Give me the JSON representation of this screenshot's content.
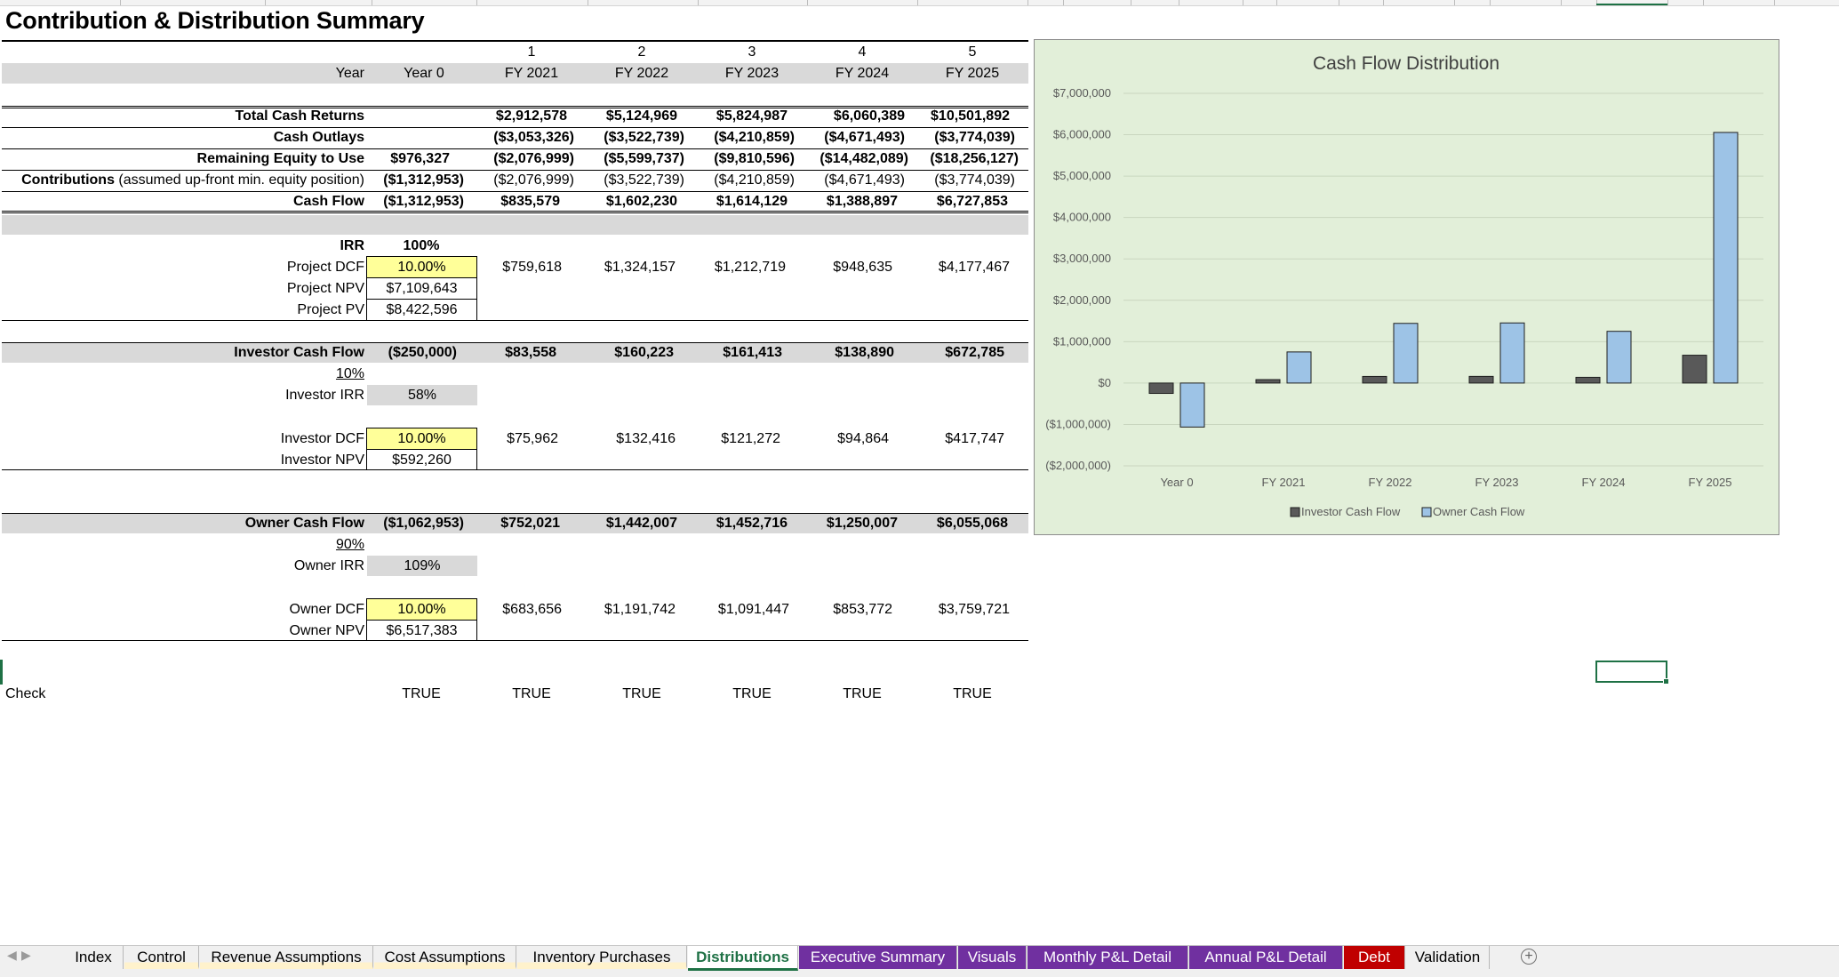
{
  "title": "Contribution & Distribution Summary",
  "header": {
    "year_label": "Year",
    "year0": "Year 0",
    "period_numbers": [
      "1",
      "2",
      "3",
      "4",
      "5"
    ],
    "fy_labels": [
      "FY 2021",
      "FY 2022",
      "FY 2023",
      "FY 2024",
      "FY 2025"
    ]
  },
  "summary": {
    "total_cash_returns": {
      "label": "Total Cash Returns",
      "y0": "",
      "values": [
        "$2,912,578",
        "$5,124,969",
        "$5,824,987",
        "$6,060,389",
        "$10,501,892"
      ]
    },
    "cash_outlays": {
      "label": "Cash Outlays",
      "y0": "",
      "values": [
        "($3,053,326)",
        "($3,522,739)",
        "($4,210,859)",
        "($4,671,493)",
        "($3,774,039)"
      ]
    },
    "remaining_equity": {
      "label": "Remaining Equity to Use",
      "y0": "$976,327",
      "values": [
        "($2,076,999)",
        "($5,599,737)",
        "($9,810,596)",
        "($14,482,089)",
        "($18,256,127)"
      ]
    },
    "contributions": {
      "label_bold": "Contributions",
      "label_note": "(assumed up-front min. equity position)",
      "y0": "($1,312,953)",
      "values": [
        "($2,076,999)",
        "($3,522,739)",
        "($4,210,859)",
        "($4,671,493)",
        "($3,774,039)"
      ]
    },
    "cash_flow": {
      "label": "Cash Flow",
      "y0": "($1,312,953)",
      "values": [
        "$835,579",
        "$1,602,230",
        "$1,614,129",
        "$1,388,897",
        "$6,727,853"
      ]
    }
  },
  "project": {
    "irr_label": "IRR",
    "irr": "100%",
    "dcf_label": "Project DCF",
    "dcf": "10.00%",
    "dcf_values": [
      "$759,618",
      "$1,324,157",
      "$1,212,719",
      "$948,635",
      "$4,177,467"
    ],
    "npv_label": "Project NPV",
    "npv": "$7,109,643",
    "pv_label": "Project PV",
    "pv": "$8,422,596"
  },
  "investor": {
    "cf_label": "Investor Cash Flow",
    "y0": "($250,000)",
    "values": [
      "$83,558",
      "$160,223",
      "$161,413",
      "$138,890",
      "$672,785"
    ],
    "share": "10%",
    "irr_label": "Investor IRR",
    "irr": "58%",
    "dcf_label": "Investor DCF",
    "dcf": "10.00%",
    "dcf_values": [
      "$75,962",
      "$132,416",
      "$121,272",
      "$94,864",
      "$417,747"
    ],
    "npv_label": "Investor NPV",
    "npv": "$592,260"
  },
  "owner": {
    "cf_label": "Owner Cash Flow",
    "y0": "($1,062,953)",
    "values": [
      "$752,021",
      "$1,442,007",
      "$1,452,716",
      "$1,250,007",
      "$6,055,068"
    ],
    "share": "90%",
    "irr_label": "Owner IRR",
    "irr": "109%",
    "dcf_label": "Owner DCF",
    "dcf": "10.00%",
    "dcf_values": [
      "$683,656",
      "$1,191,742",
      "$1,091,447",
      "$853,772",
      "$3,759,721"
    ],
    "npv_label": "Owner NPV",
    "npv": "$6,517,383"
  },
  "check": {
    "label": "Check",
    "values": [
      "TRUE",
      "TRUE",
      "TRUE",
      "TRUE",
      "TRUE",
      "TRUE"
    ]
  },
  "chart_data": {
    "type": "bar",
    "title": "Cash Flow Distribution",
    "categories": [
      "Year 0",
      "FY 2021",
      "FY 2022",
      "FY 2023",
      "FY 2024",
      "FY 2025"
    ],
    "series": [
      {
        "name": "Investor Cash Flow",
        "color": "#595959",
        "values": [
          -250000,
          83558,
          160223,
          161413,
          138890,
          672785
        ]
      },
      {
        "name": "Owner Cash Flow",
        "color": "#9dc3e6",
        "values": [
          -1062953,
          752021,
          1442007,
          1452716,
          1250007,
          6055068
        ]
      }
    ],
    "ylim": [
      -2000000,
      7000000
    ],
    "yticks": [
      7000000,
      6000000,
      5000000,
      4000000,
      3000000,
      2000000,
      1000000,
      0,
      -1000000,
      -2000000
    ],
    "ytick_labels": [
      "$7,000,000",
      "$6,000,000",
      "$5,000,000",
      "$4,000,000",
      "$3,000,000",
      "$2,000,000",
      "$1,000,000",
      "$0",
      "($1,000,000)",
      "($2,000,000)"
    ],
    "grid": true,
    "legend": "bottom",
    "background": "#e2efd9"
  },
  "tabs": [
    {
      "label": "Index",
      "color": "",
      "active": false
    },
    {
      "label": "Control",
      "color": "#fff2cc",
      "active": false
    },
    {
      "label": "Revenue Assumptions",
      "color": "#fff2cc",
      "active": false
    },
    {
      "label": "Cost Assumptions",
      "color": "#fff2cc",
      "active": false
    },
    {
      "label": "Inventory Purchases",
      "color": "#fff2cc",
      "active": false
    },
    {
      "label": "Distributions",
      "color": "#ffffff",
      "active": true
    },
    {
      "label": "Executive Summary",
      "color": "#7030a0",
      "active": false
    },
    {
      "label": "Visuals",
      "color": "#7030a0",
      "active": false
    },
    {
      "label": "Monthly P&L Detail",
      "color": "#7030a0",
      "active": false
    },
    {
      "label": "Annual P&L Detail",
      "color": "#7030a0",
      "active": false
    },
    {
      "label": "Debt",
      "color": "#c00000",
      "active": false
    },
    {
      "label": "Validation",
      "color": "",
      "active": false
    }
  ],
  "add_sheet_icon": "plus-circle-icon",
  "colors": {
    "input_yellow": "#ffff99",
    "band_grey": "#d9d9d9",
    "chart_bg": "#e2efd9",
    "excel_green": "#1e7145",
    "active_tab_text": "#1e7145"
  }
}
